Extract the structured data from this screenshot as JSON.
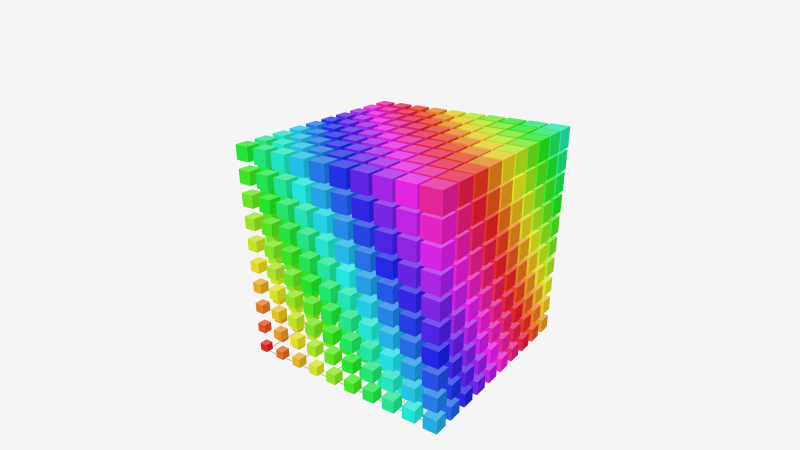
{
  "chart_data": {
    "type": "scatter3D",
    "symbol": "cube",
    "grid3D": true,
    "axis_labels_shown": false,
    "x_values": [
      0,
      1,
      2,
      3,
      4,
      5,
      6,
      7,
      8,
      9
    ],
    "y_values": [
      0,
      1,
      2,
      3,
      4,
      5,
      6,
      7,
      8,
      9
    ],
    "z_values": [
      0,
      1,
      2,
      3,
      4,
      5,
      6,
      7,
      8,
      9
    ],
    "color_encoding": "hue",
    "visual_map_colors": [
      "#e63a3a",
      "#e6a03a",
      "#d6e63a",
      "#4ee63a",
      "#3ae6d6",
      "#3a6ae6",
      "#8a3ae6",
      "#e63ad6"
    ],
    "background": "#f5f5f5",
    "grid_line_color": "#b0b0b0"
  }
}
